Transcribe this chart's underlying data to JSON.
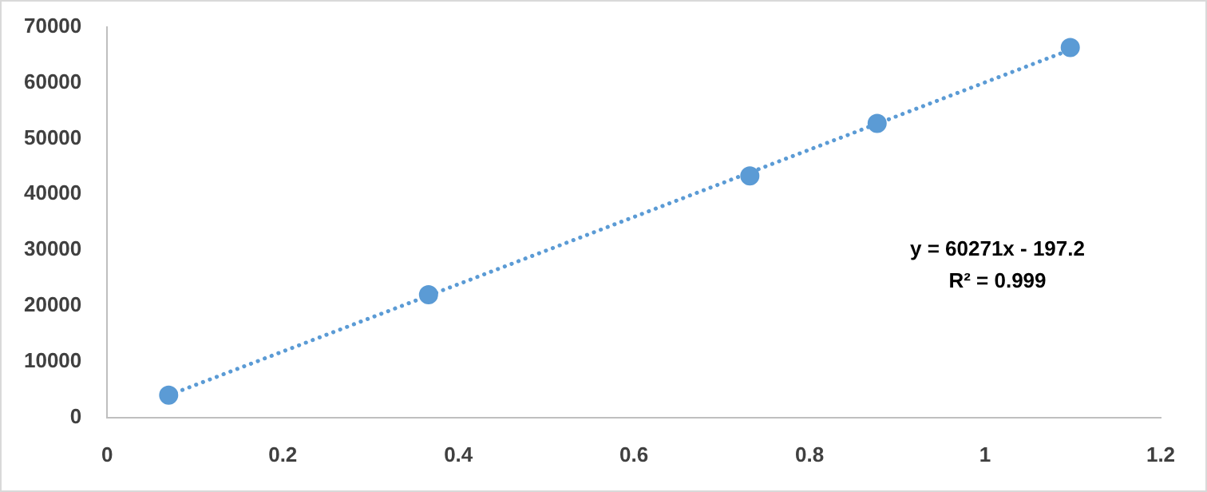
{
  "chart_data": {
    "type": "scatter",
    "x": [
      0.07,
      0.366,
      0.732,
      0.877,
      1.097
    ],
    "xlim": [
      0,
      1.2
    ],
    "xticks": [
      0,
      0.2,
      0.4,
      0.6,
      0.8,
      1,
      1.2
    ],
    "ylim": [
      0,
      70000
    ],
    "yticks": [
      0,
      10000,
      20000,
      30000,
      40000,
      50000,
      60000,
      70000
    ],
    "grid": false,
    "legend": false,
    "marker": "circle",
    "series": [
      {
        "color": "#5b9bd5",
        "values": [
          4000,
          22000,
          43300,
          52700,
          66300
        ]
      },
      {
        "type": "line",
        "color": "#5b9bd5",
        "line_style": "dotted",
        "marker": "none",
        "x": [
          0.07,
          1.097
        ],
        "values": [
          4000,
          65900
        ]
      }
    ],
    "annotations": [
      "y = 60271x - 197.2",
      "R² = 0.999"
    ]
  }
}
